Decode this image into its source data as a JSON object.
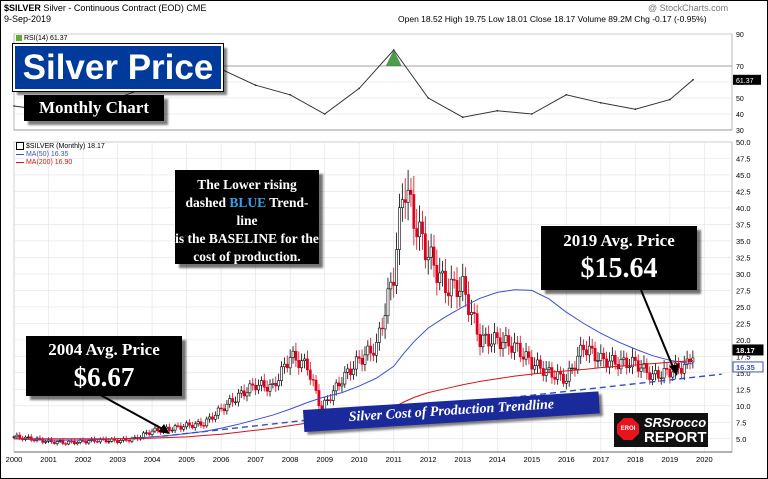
{
  "header": {
    "symbol": "$SILVER",
    "description": "Silver - Continuous Contract (EOD)",
    "exchange": "CME",
    "date": "9-Sep-2019",
    "watermark": "@ StockCharts.com",
    "quote": "Open 18.52  High 19.75  Low 18.01  Close 18.17  Volume 89.2M  Chg -0.17 (-0.95%)"
  },
  "title": "Silver Price",
  "subtitle": "Monthly Chart",
  "rsi_label": "RSI(14) 61.37",
  "legend": {
    "main": "$SILVER (Monthly) 18.17",
    "ma50": "MA(50) 16.35",
    "ma200": "MA(200) 16.90"
  },
  "annotations": {
    "baseline_l1": "The Lower rising",
    "baseline_l2a": "dashed ",
    "baseline_l2b": "BLUE",
    "baseline_l2c": " Trend-line",
    "baseline_l3": "is the BASELINE for the",
    "baseline_l4": "cost of production.",
    "avg2004_label": "2004 Avg. Price",
    "avg2004_value": "$6.67",
    "avg2019_label": "2019 Avg. Price",
    "avg2019_value": "$15.64",
    "trendline_label": "Silver Cost of Production Trendline"
  },
  "logo": {
    "line1": "SRSrocco",
    "line2": "REPORT",
    "badge": "EROI"
  },
  "colors": {
    "title_bg": "#003a9a",
    "up_bar": "#000000",
    "down_bar": "#e0001b",
    "ma50": "#3b4fd6",
    "ma200": "#d81414",
    "trendline": "#3050c8",
    "rsi_fill": "#2e8b2e",
    "trend_banner": "#1a2a9a",
    "blue_word": "#3a9ee8"
  },
  "chart_data": [
    {
      "type": "line",
      "title": "RSI(14) 61.37",
      "x": [
        2000,
        2001,
        2002,
        2003,
        2004,
        2005,
        2006,
        2007,
        2008,
        2009,
        2010,
        2011,
        2012,
        2013,
        2014,
        2015,
        2016,
        2017,
        2018,
        2019,
        2019.67
      ],
      "series": [
        {
          "name": "RSI(14)",
          "values": [
            45,
            42,
            44,
            50,
            58,
            55,
            68,
            58,
            52,
            40,
            56,
            80,
            50,
            38,
            42,
            40,
            52,
            47,
            43,
            49,
            61.37
          ]
        }
      ],
      "ylim": [
        30,
        90
      ],
      "yticks": [
        90,
        70,
        60,
        50,
        40,
        30
      ],
      "ylabels": [
        "90",
        "70",
        "60",
        "50",
        "40",
        "30"
      ],
      "ref_lines": [
        70,
        30
      ],
      "last_value": "61.37"
    },
    {
      "type": "line",
      "title": "$SILVER (Monthly) 18.17",
      "xticks": [
        "2000",
        "2001",
        "2002",
        "2003",
        "2004",
        "2005",
        "2006",
        "2007",
        "2008",
        "2009",
        "2010",
        "2011",
        "2012",
        "2013",
        "2014",
        "2015",
        "2016",
        "2017",
        "2018",
        "2019",
        "2020"
      ],
      "x": [
        2000,
        2000.5,
        2001,
        2001.5,
        2002,
        2002.5,
        2003,
        2003.5,
        2004,
        2004.5,
        2005,
        2005.5,
        2006,
        2006.5,
        2007,
        2007.5,
        2008,
        2008.5,
        2008.9,
        2009.5,
        2010,
        2010.5,
        2011,
        2011.3,
        2011.6,
        2012,
        2012.5,
        2013,
        2013.5,
        2014,
        2014.5,
        2015,
        2015.5,
        2016,
        2016.5,
        2017,
        2017.5,
        2018,
        2018.5,
        2019,
        2019.5,
        2019.67
      ],
      "series": [
        {
          "name": "$SILVER (Monthly)",
          "values": [
            5.3,
            5.0,
            4.6,
            4.4,
            4.6,
            4.8,
            4.7,
            5.0,
            6.2,
            6.5,
            7.0,
            7.3,
            9.5,
            11.5,
            13.2,
            12.8,
            17.5,
            16.0,
            9.5,
            14.0,
            17.0,
            19.0,
            30.0,
            44.0,
            38.0,
            33.0,
            28.0,
            28.0,
            20.0,
            20.0,
            19.0,
            16.5,
            15.0,
            14.0,
            19.0,
            17.0,
            16.5,
            16.5,
            14.5,
            15.2,
            16.2,
            18.17
          ]
        },
        {
          "name": "MA(50)",
          "values": [
            5.0,
            4.9,
            4.8,
            4.8,
            4.8,
            4.9,
            5.0,
            5.1,
            5.3,
            5.5,
            5.8,
            6.1,
            6.6,
            7.2,
            7.9,
            8.6,
            9.5,
            10.5,
            11.2,
            12.0,
            13.0,
            14.2,
            16.0,
            18.0,
            19.8,
            21.8,
            23.5,
            25.0,
            26.3,
            27.2,
            27.6,
            27.5,
            26.2,
            24.2,
            22.5,
            21.0,
            19.7,
            18.6,
            17.6,
            16.9,
            16.5,
            16.35
          ]
        },
        {
          "name": "MA(200)",
          "values": [
            5.0,
            5.0,
            5.0,
            5.0,
            5.0,
            5.0,
            5.0,
            5.0,
            5.1,
            5.2,
            5.3,
            5.5,
            5.7,
            6.0,
            6.3,
            6.6,
            7.0,
            7.4,
            7.7,
            8.1,
            8.6,
            9.1,
            9.8,
            10.6,
            11.3,
            12.0,
            12.6,
            13.2,
            13.7,
            14.1,
            14.5,
            14.8,
            15.1,
            15.3,
            15.5,
            15.8,
            16.0,
            16.2,
            16.4,
            16.6,
            16.8,
            16.9
          ]
        }
      ],
      "ylim": [
        3,
        50
      ],
      "yticks": [
        5,
        7.5,
        10,
        12.5,
        15,
        17.5,
        20,
        22.5,
        25,
        27.5,
        30,
        32.5,
        35,
        37.5,
        40,
        42.5,
        45,
        47.5,
        50
      ],
      "ylabels": [
        "5.0",
        "7.5",
        "10.0",
        "12.5",
        "15.0",
        "17.5",
        "20.0",
        "22.5",
        "25.0",
        "27.5",
        "30.0",
        "32.5",
        "35.0",
        "37.5",
        "40.0",
        "42.5",
        "45.0",
        "47.5",
        "50.0"
      ],
      "price_tags": [
        "18.17",
        "16.35"
      ],
      "trendline": {
        "name": "Silver Cost of Production Trendline",
        "x": [
          2004.3,
          2020.5
        ],
        "y": [
          5.4,
          14.8
        ]
      }
    }
  ]
}
